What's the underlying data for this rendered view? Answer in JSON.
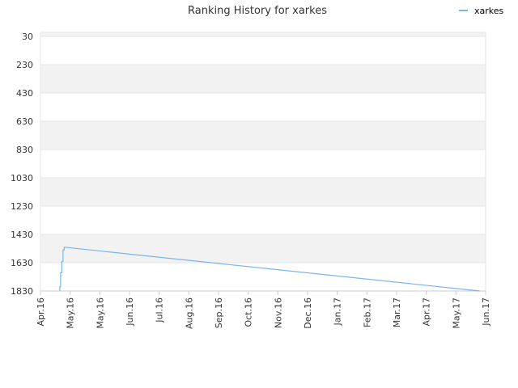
{
  "chart_data": {
    "type": "line",
    "title": "Ranking History for xarkes",
    "xlabel": "",
    "ylabel": "",
    "y_reversed": true,
    "ylim": [
      30,
      1830
    ],
    "y_ticks": [
      30,
      230,
      430,
      630,
      830,
      1030,
      1230,
      1430,
      1630,
      1830
    ],
    "x_ticks": [
      "Apr.16",
      "May.16",
      "May.16",
      "Jun.16",
      "Jul.16",
      "Aug.16",
      "Sep.16",
      "Oct.16",
      "Nov.16",
      "Dec.16",
      "Jan.17",
      "Feb.17",
      "Mar.17",
      "Apr.17",
      "May.17",
      "Jun.17"
    ],
    "grid": true,
    "alternating_bands": true,
    "legend_position": "top-right",
    "series": [
      {
        "name": "xarkes",
        "color": "#7cb5ec",
        "points": [
          {
            "x": 0.65,
            "y": 1830
          },
          {
            "x": 0.65,
            "y": 1800
          },
          {
            "x": 0.68,
            "y": 1800
          },
          {
            "x": 0.68,
            "y": 1700
          },
          {
            "x": 0.72,
            "y": 1700
          },
          {
            "x": 0.72,
            "y": 1620
          },
          {
            "x": 0.76,
            "y": 1620
          },
          {
            "x": 0.76,
            "y": 1540
          },
          {
            "x": 0.8,
            "y": 1540
          },
          {
            "x": 0.8,
            "y": 1520
          },
          {
            "x": 14.8,
            "y": 1830
          }
        ]
      }
    ]
  }
}
